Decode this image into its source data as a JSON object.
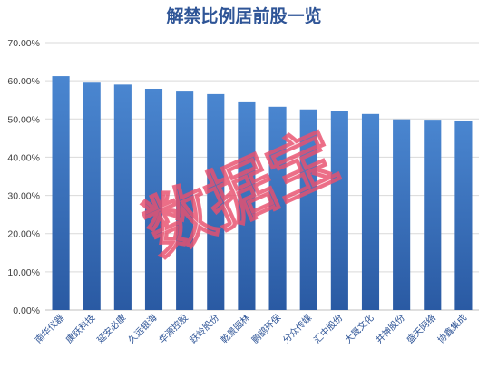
{
  "chart_data": {
    "type": "bar",
    "title": "解禁比例居前股一览",
    "categories": [
      "南华仪器",
      "康跃科技",
      "延安必康",
      "久远银海",
      "华源控股",
      "跃岭股份",
      "乾景园林",
      "鹏鹞环保",
      "分众传媒",
      "汇中股份",
      "大晟文化",
      "井神股份",
      "盛天网络",
      "协鑫集成"
    ],
    "values": [
      61.2,
      59.5,
      59.0,
      57.9,
      57.4,
      56.5,
      54.6,
      53.2,
      52.5,
      52.0,
      51.3,
      49.9,
      49.8,
      49.6
    ],
    "ylim": [
      0,
      70
    ],
    "yticks": [
      "0.00%",
      "10.00%",
      "20.00%",
      "30.00%",
      "40.00%",
      "50.00%",
      "60.00%",
      "70.00%"
    ],
    "xlabel": "",
    "ylabel": "",
    "grid": true,
    "legend": "none",
    "colors": {
      "bar_top": "#4a86d0",
      "bar_bottom": "#2a5aa3",
      "title": "#2f5597"
    }
  },
  "watermark": "数据宝"
}
